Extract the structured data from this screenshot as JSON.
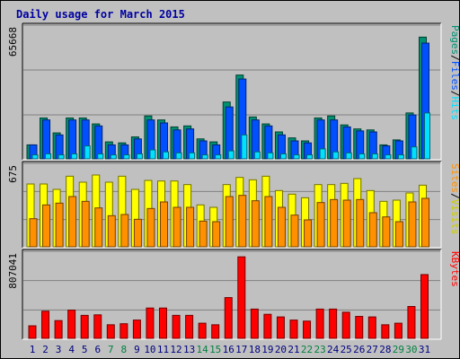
{
  "title": "Daily usage for March 2015",
  "colors": {
    "hits": "#00e0ff",
    "files": "#0050ff",
    "pages": "#009070",
    "visits": "#ffff00",
    "sites": "#ff9000",
    "kbytes": "#ff0000",
    "weekday": "#000080",
    "weekend": "#008040",
    "panel_bg": "#c0c0c0",
    "grid": "#808080"
  },
  "chart_data": [
    {
      "type": "bar",
      "name": "pages-files-hits",
      "y_max_label": "65668",
      "right_label": [
        "Pages",
        "/",
        "Files",
        "/",
        "Hits"
      ],
      "categories": [
        "1",
        "2",
        "3",
        "4",
        "5",
        "6",
        "7",
        "8",
        "9",
        "10",
        "11",
        "12",
        "13",
        "14",
        "15",
        "16",
        "17",
        "18",
        "19",
        "20",
        "21",
        "22",
        "23",
        "24",
        "25",
        "26",
        "27",
        "28",
        "29",
        "30",
        "31"
      ],
      "weekend": [
        false,
        false,
        false,
        false,
        false,
        false,
        true,
        true,
        false,
        false,
        false,
        false,
        false,
        true,
        true,
        false,
        false,
        false,
        false,
        false,
        false,
        true,
        true,
        false,
        false,
        false,
        false,
        false,
        true,
        true,
        false
      ],
      "ylim": [
        0,
        65668
      ],
      "series": [
        {
          "key": "pages",
          "values": [
            7000,
            20500,
            13000,
            20500,
            20500,
            17500,
            8500,
            8000,
            11000,
            21500,
            19500,
            16000,
            16500,
            10000,
            8500,
            28500,
            42000,
            21000,
            17500,
            13500,
            10500,
            9000,
            20500,
            21500,
            17000,
            15000,
            14500,
            7000,
            9500,
            23000,
            61000
          ]
        },
        {
          "key": "files",
          "values": [
            7000,
            19500,
            12000,
            19500,
            19500,
            16500,
            7000,
            7000,
            10000,
            19500,
            18000,
            14500,
            15000,
            9000,
            7000,
            26000,
            40000,
            19500,
            16500,
            12000,
            9000,
            8000,
            19500,
            19500,
            16000,
            14000,
            13500,
            6500,
            9000,
            22000,
            58000
          ]
        },
        {
          "key": "hits",
          "values": [
            2000,
            2500,
            2000,
            2500,
            6500,
            2500,
            2000,
            2000,
            2500,
            4500,
            3500,
            3000,
            3000,
            2000,
            2000,
            4000,
            12000,
            3500,
            3000,
            2500,
            2000,
            2000,
            5000,
            3500,
            3000,
            2500,
            2500,
            2000,
            2000,
            6000,
            23000
          ]
        }
      ]
    },
    {
      "type": "bar",
      "name": "sites-visits",
      "y_max_label": "675",
      "right_label": [
        "Sites",
        "/",
        "Visits"
      ],
      "ylim": [
        0,
        675
      ],
      "series": [
        {
          "key": "visits",
          "values": [
            525,
            525,
            480,
            590,
            540,
            600,
            540,
            590,
            480,
            555,
            550,
            550,
            520,
            350,
            330,
            520,
            580,
            560,
            590,
            470,
            440,
            410,
            520,
            520,
            530,
            570,
            470,
            380,
            390,
            450,
            515
          ]
        },
        {
          "key": "sites",
          "values": [
            235,
            350,
            365,
            420,
            380,
            325,
            260,
            270,
            230,
            320,
            375,
            330,
            330,
            215,
            210,
            420,
            430,
            385,
            420,
            330,
            265,
            225,
            370,
            395,
            390,
            395,
            285,
            250,
            210,
            375,
            405
          ]
        }
      ]
    },
    {
      "type": "bar",
      "name": "kbytes",
      "y_max_label": "807041",
      "right_label": [
        "KBytes"
      ],
      "ylim": [
        0,
        807041
      ],
      "series": [
        {
          "key": "kbytes",
          "values": [
            120000,
            260000,
            170000,
            270000,
            220000,
            225000,
            130000,
            140000,
            175000,
            290000,
            290000,
            220000,
            220000,
            145000,
            130000,
            390000,
            780000,
            280000,
            230000,
            205000,
            175000,
            165000,
            280000,
            280000,
            250000,
            210000,
            205000,
            130000,
            145000,
            305000,
            610000
          ]
        }
      ]
    }
  ]
}
